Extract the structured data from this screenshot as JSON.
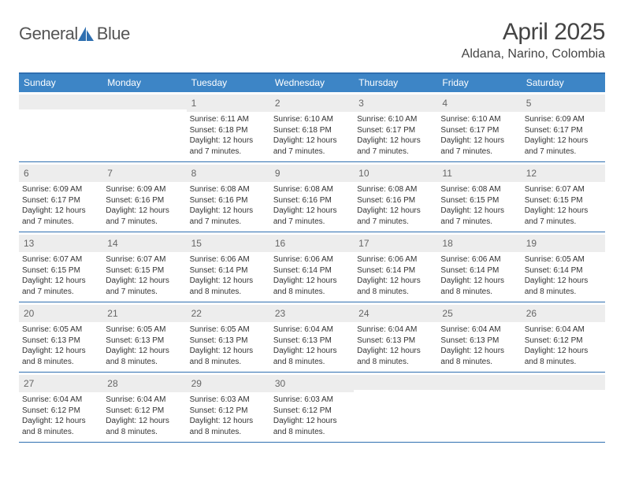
{
  "logo": {
    "text_general": "General",
    "text_blue": "Blue"
  },
  "title": {
    "month": "April 2025",
    "location": "Aldana, Narino, Colombia"
  },
  "colors": {
    "header_bar": "#3d85c6",
    "rule": "#2f6fb0",
    "day_num_bg": "#ededed",
    "text": "#333333",
    "title_text": "#444444"
  },
  "day_headers": [
    "Sunday",
    "Monday",
    "Tuesday",
    "Wednesday",
    "Thursday",
    "Friday",
    "Saturday"
  ],
  "weeks": [
    [
      {
        "num": "",
        "sunrise": "",
        "sunset": "",
        "daylight": ""
      },
      {
        "num": "",
        "sunrise": "",
        "sunset": "",
        "daylight": ""
      },
      {
        "num": "1",
        "sunrise": "Sunrise: 6:11 AM",
        "sunset": "Sunset: 6:18 PM",
        "daylight": "Daylight: 12 hours and 7 minutes."
      },
      {
        "num": "2",
        "sunrise": "Sunrise: 6:10 AM",
        "sunset": "Sunset: 6:18 PM",
        "daylight": "Daylight: 12 hours and 7 minutes."
      },
      {
        "num": "3",
        "sunrise": "Sunrise: 6:10 AM",
        "sunset": "Sunset: 6:17 PM",
        "daylight": "Daylight: 12 hours and 7 minutes."
      },
      {
        "num": "4",
        "sunrise": "Sunrise: 6:10 AM",
        "sunset": "Sunset: 6:17 PM",
        "daylight": "Daylight: 12 hours and 7 minutes."
      },
      {
        "num": "5",
        "sunrise": "Sunrise: 6:09 AM",
        "sunset": "Sunset: 6:17 PM",
        "daylight": "Daylight: 12 hours and 7 minutes."
      }
    ],
    [
      {
        "num": "6",
        "sunrise": "Sunrise: 6:09 AM",
        "sunset": "Sunset: 6:17 PM",
        "daylight": "Daylight: 12 hours and 7 minutes."
      },
      {
        "num": "7",
        "sunrise": "Sunrise: 6:09 AM",
        "sunset": "Sunset: 6:16 PM",
        "daylight": "Daylight: 12 hours and 7 minutes."
      },
      {
        "num": "8",
        "sunrise": "Sunrise: 6:08 AM",
        "sunset": "Sunset: 6:16 PM",
        "daylight": "Daylight: 12 hours and 7 minutes."
      },
      {
        "num": "9",
        "sunrise": "Sunrise: 6:08 AM",
        "sunset": "Sunset: 6:16 PM",
        "daylight": "Daylight: 12 hours and 7 minutes."
      },
      {
        "num": "10",
        "sunrise": "Sunrise: 6:08 AM",
        "sunset": "Sunset: 6:16 PM",
        "daylight": "Daylight: 12 hours and 7 minutes."
      },
      {
        "num": "11",
        "sunrise": "Sunrise: 6:08 AM",
        "sunset": "Sunset: 6:15 PM",
        "daylight": "Daylight: 12 hours and 7 minutes."
      },
      {
        "num": "12",
        "sunrise": "Sunrise: 6:07 AM",
        "sunset": "Sunset: 6:15 PM",
        "daylight": "Daylight: 12 hours and 7 minutes."
      }
    ],
    [
      {
        "num": "13",
        "sunrise": "Sunrise: 6:07 AM",
        "sunset": "Sunset: 6:15 PM",
        "daylight": "Daylight: 12 hours and 7 minutes."
      },
      {
        "num": "14",
        "sunrise": "Sunrise: 6:07 AM",
        "sunset": "Sunset: 6:15 PM",
        "daylight": "Daylight: 12 hours and 7 minutes."
      },
      {
        "num": "15",
        "sunrise": "Sunrise: 6:06 AM",
        "sunset": "Sunset: 6:14 PM",
        "daylight": "Daylight: 12 hours and 8 minutes."
      },
      {
        "num": "16",
        "sunrise": "Sunrise: 6:06 AM",
        "sunset": "Sunset: 6:14 PM",
        "daylight": "Daylight: 12 hours and 8 minutes."
      },
      {
        "num": "17",
        "sunrise": "Sunrise: 6:06 AM",
        "sunset": "Sunset: 6:14 PM",
        "daylight": "Daylight: 12 hours and 8 minutes."
      },
      {
        "num": "18",
        "sunrise": "Sunrise: 6:06 AM",
        "sunset": "Sunset: 6:14 PM",
        "daylight": "Daylight: 12 hours and 8 minutes."
      },
      {
        "num": "19",
        "sunrise": "Sunrise: 6:05 AM",
        "sunset": "Sunset: 6:14 PM",
        "daylight": "Daylight: 12 hours and 8 minutes."
      }
    ],
    [
      {
        "num": "20",
        "sunrise": "Sunrise: 6:05 AM",
        "sunset": "Sunset: 6:13 PM",
        "daylight": "Daylight: 12 hours and 8 minutes."
      },
      {
        "num": "21",
        "sunrise": "Sunrise: 6:05 AM",
        "sunset": "Sunset: 6:13 PM",
        "daylight": "Daylight: 12 hours and 8 minutes."
      },
      {
        "num": "22",
        "sunrise": "Sunrise: 6:05 AM",
        "sunset": "Sunset: 6:13 PM",
        "daylight": "Daylight: 12 hours and 8 minutes."
      },
      {
        "num": "23",
        "sunrise": "Sunrise: 6:04 AM",
        "sunset": "Sunset: 6:13 PM",
        "daylight": "Daylight: 12 hours and 8 minutes."
      },
      {
        "num": "24",
        "sunrise": "Sunrise: 6:04 AM",
        "sunset": "Sunset: 6:13 PM",
        "daylight": "Daylight: 12 hours and 8 minutes."
      },
      {
        "num": "25",
        "sunrise": "Sunrise: 6:04 AM",
        "sunset": "Sunset: 6:13 PM",
        "daylight": "Daylight: 12 hours and 8 minutes."
      },
      {
        "num": "26",
        "sunrise": "Sunrise: 6:04 AM",
        "sunset": "Sunset: 6:12 PM",
        "daylight": "Daylight: 12 hours and 8 minutes."
      }
    ],
    [
      {
        "num": "27",
        "sunrise": "Sunrise: 6:04 AM",
        "sunset": "Sunset: 6:12 PM",
        "daylight": "Daylight: 12 hours and 8 minutes."
      },
      {
        "num": "28",
        "sunrise": "Sunrise: 6:04 AM",
        "sunset": "Sunset: 6:12 PM",
        "daylight": "Daylight: 12 hours and 8 minutes."
      },
      {
        "num": "29",
        "sunrise": "Sunrise: 6:03 AM",
        "sunset": "Sunset: 6:12 PM",
        "daylight": "Daylight: 12 hours and 8 minutes."
      },
      {
        "num": "30",
        "sunrise": "Sunrise: 6:03 AM",
        "sunset": "Sunset: 6:12 PM",
        "daylight": "Daylight: 12 hours and 8 minutes."
      },
      {
        "num": "",
        "sunrise": "",
        "sunset": "",
        "daylight": ""
      },
      {
        "num": "",
        "sunrise": "",
        "sunset": "",
        "daylight": ""
      },
      {
        "num": "",
        "sunrise": "",
        "sunset": "",
        "daylight": ""
      }
    ]
  ]
}
